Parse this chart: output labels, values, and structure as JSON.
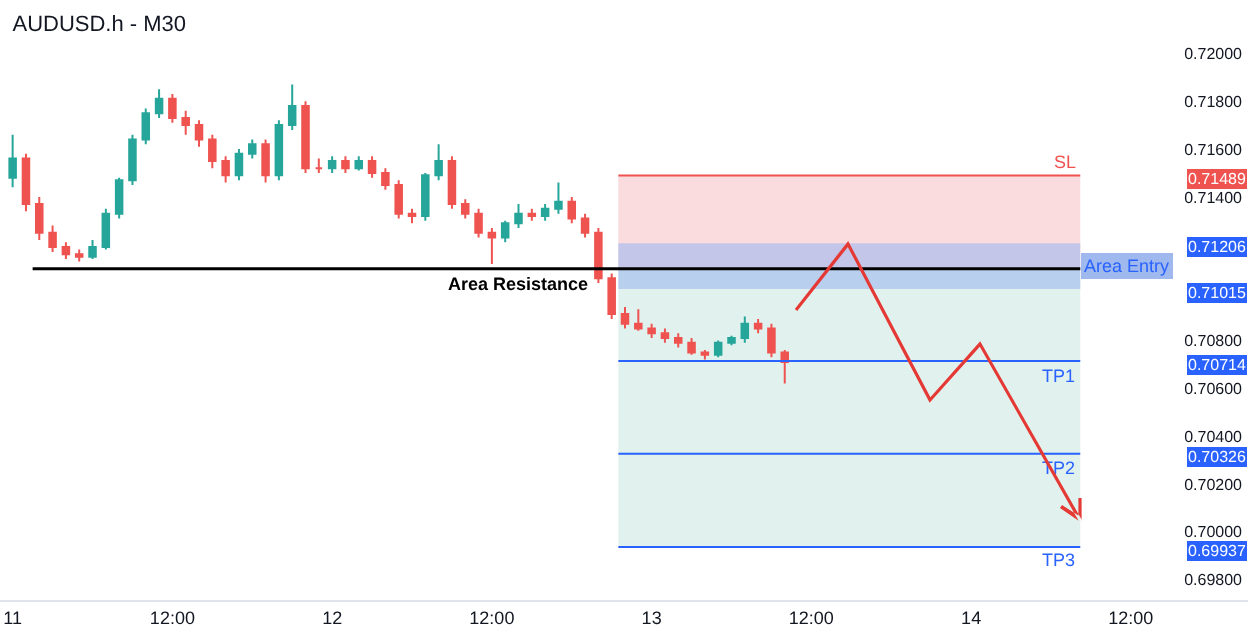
{
  "chart_data": {
    "type": "candlestick",
    "title": "AUDUSD.h - M30",
    "categories": [
      "11",
      null,
      null,
      null,
      null,
      null,
      null,
      null,
      null,
      null,
      null,
      null,
      "12:00",
      null,
      null,
      null,
      null,
      null,
      null,
      null,
      null,
      null,
      null,
      null,
      "12",
      null,
      null,
      null,
      null,
      null,
      null,
      null,
      null,
      null,
      null,
      null,
      "12:00",
      null,
      null,
      null,
      null,
      null,
      null,
      null,
      null,
      null,
      null,
      null,
      "13",
      null,
      null,
      null,
      null,
      null,
      null,
      null,
      null,
      null,
      null,
      null,
      "12:00",
      null,
      null,
      null,
      null,
      null,
      null,
      null,
      null,
      null,
      null,
      null,
      "14",
      null,
      null,
      null,
      null,
      null,
      null,
      null,
      null,
      null,
      null,
      null,
      "12:00",
      null,
      null,
      null,
      null,
      null,
      null,
      null,
      null,
      null
    ],
    "ohlc": [
      [
        0.7148,
        0.7166,
        0.7144,
        0.7156
      ],
      [
        0.7156,
        0.7158,
        0.7134,
        0.7137
      ],
      [
        0.7137,
        0.714,
        0.7122,
        0.7125
      ],
      [
        0.7125,
        0.7128,
        0.7117,
        0.7119
      ],
      [
        0.7119,
        0.7121,
        0.7114,
        0.7116
      ],
      [
        0.7116,
        0.7118,
        0.7113,
        0.7115
      ],
      [
        0.7115,
        0.7122,
        0.7114,
        0.7119
      ],
      [
        0.7119,
        0.7135,
        0.7118,
        0.7133
      ],
      [
        0.7133,
        0.7148,
        0.7131,
        0.7147
      ],
      [
        0.7147,
        0.7166,
        0.7145,
        0.7164
      ],
      [
        0.7164,
        0.7177,
        0.7162,
        0.7175
      ],
      [
        0.7175,
        0.7185,
        0.7173,
        0.7181
      ],
      [
        0.7181,
        0.7183,
        0.7171,
        0.7173
      ],
      [
        0.7173,
        0.7176,
        0.7166,
        0.717
      ],
      [
        0.717,
        0.7172,
        0.7161,
        0.7164
      ],
      [
        0.7164,
        0.7166,
        0.7152,
        0.7155
      ],
      [
        0.7155,
        0.7157,
        0.7146,
        0.7149
      ],
      [
        0.7149,
        0.716,
        0.7147,
        0.7158
      ],
      [
        0.7158,
        0.7164,
        0.7156,
        0.7162
      ],
      [
        0.7162,
        0.7164,
        0.7146,
        0.7149
      ],
      [
        0.7149,
        0.7172,
        0.7147,
        0.717
      ],
      [
        0.717,
        0.7187,
        0.7168,
        0.7178
      ],
      [
        0.7178,
        0.718,
        0.715,
        0.7152
      ],
      [
        0.7152,
        0.7156,
        0.715,
        0.7152
      ],
      [
        0.7152,
        0.7157,
        0.715,
        0.7155
      ],
      [
        0.7155,
        0.7157,
        0.715,
        0.7152
      ],
      [
        0.7152,
        0.7157,
        0.7151,
        0.7155
      ],
      [
        0.7155,
        0.7157,
        0.7148,
        0.715
      ],
      [
        0.715,
        0.7152,
        0.7143,
        0.7145
      ],
      [
        0.7145,
        0.7147,
        0.7131,
        0.7133
      ],
      [
        0.7133,
        0.7135,
        0.7129,
        0.7132
      ],
      [
        0.7132,
        0.715,
        0.713,
        0.7149
      ],
      [
        0.7149,
        0.7162,
        0.7147,
        0.7155
      ],
      [
        0.7155,
        0.7157,
        0.7135,
        0.7137
      ],
      [
        0.7137,
        0.7139,
        0.7131,
        0.7133
      ],
      [
        0.7133,
        0.7135,
        0.7123,
        0.7125
      ],
      [
        0.7125,
        0.7127,
        0.7112,
        0.7123
      ],
      [
        0.7123,
        0.713,
        0.7121,
        0.7129
      ],
      [
        0.7129,
        0.7137,
        0.7127,
        0.7133
      ],
      [
        0.7133,
        0.7135,
        0.713,
        0.7132
      ],
      [
        0.7132,
        0.7137,
        0.713,
        0.7135
      ],
      [
        0.7135,
        0.7146,
        0.7133,
        0.7138
      ],
      [
        0.7138,
        0.714,
        0.7129,
        0.7131
      ],
      [
        0.7131,
        0.7133,
        0.7123,
        0.7125
      ],
      [
        0.7125,
        0.7127,
        0.7104,
        0.7106
      ],
      [
        0.7106,
        0.7108,
        0.7089,
        0.7091
      ],
      [
        0.7091,
        0.7094,
        0.7085,
        0.7087
      ],
      [
        0.7087,
        0.7093,
        0.7084,
        0.7085
      ],
      [
        0.7085,
        0.7087,
        0.7081,
        0.7083
      ],
      [
        0.7083,
        0.7085,
        0.7079,
        0.7081
      ],
      [
        0.7081,
        0.7083,
        0.7077,
        0.7079
      ],
      [
        0.7079,
        0.7081,
        0.7074,
        0.7075
      ],
      [
        0.7075,
        0.7076,
        0.7072,
        0.7074
      ],
      [
        0.7074,
        0.708,
        0.7073,
        0.7079
      ],
      [
        0.7079,
        0.7082,
        0.7078,
        0.7081
      ],
      [
        0.7081,
        0.709,
        0.7079,
        0.7087
      ],
      [
        0.7087,
        0.7089,
        0.7083,
        0.7085
      ],
      [
        0.7085,
        0.7087,
        0.7073,
        0.7075
      ],
      [
        0.7075,
        0.7076,
        0.7062,
        0.7071
      ],
      null,
      null,
      null,
      null,
      null,
      null,
      null,
      null,
      null,
      null,
      null,
      null,
      null,
      null,
      null,
      null,
      null,
      null,
      null,
      null,
      null,
      null,
      null,
      null,
      null,
      null,
      null,
      null,
      null,
      null,
      null,
      null,
      null,
      null,
      null
    ],
    "ylim": [
      0.69715,
      0.72223
    ],
    "yticks": [
      {
        "value": 0.698,
        "label": "0.69800"
      },
      {
        "value": 0.7,
        "label": "0.70000"
      },
      {
        "value": 0.702,
        "label": "0.70200"
      },
      {
        "value": 0.704,
        "label": "0.70400"
      },
      {
        "value": 0.706,
        "label": "0.70600"
      },
      {
        "value": 0.708,
        "label": "0.70800"
      },
      {
        "value": 0.714,
        "label": "0.71400"
      },
      {
        "value": 0.716,
        "label": "0.71600"
      },
      {
        "value": 0.718,
        "label": "0.71800"
      },
      {
        "value": 0.72,
        "label": "0.72000"
      }
    ],
    "annotations": [
      {
        "text": "0.71489",
        "y": 0.71489
      },
      {
        "text": "0.71206",
        "y": 0.71206
      },
      {
        "text": "0.71015",
        "y": 0.71015
      },
      {
        "text": "0.70714",
        "y": 0.70714
      },
      {
        "text": "0.70326",
        "y": 0.70326
      },
      {
        "text": "0.69937",
        "y": 0.69937
      }
    ],
    "ref_lines": [
      {
        "axis": "y",
        "value": 0.711,
        "label": "Area Resistance",
        "color": "#000000"
      },
      {
        "axis": "y",
        "value": 0.71489,
        "label": "SL",
        "color": "#ef5350"
      },
      {
        "axis": "y",
        "value": 0.70714,
        "label": "TP1",
        "color": "#2962ff"
      },
      {
        "axis": "y",
        "value": 0.70326,
        "label": "TP2",
        "color": "#2962ff"
      },
      {
        "axis": "y",
        "value": 0.69937,
        "label": "TP3",
        "color": "#2962ff"
      }
    ],
    "bands": [
      {
        "axis": "y",
        "from": 0.711,
        "to": 0.71489,
        "color": "#f7c5c8"
      },
      {
        "axis": "y",
        "from": 0.69937,
        "to": 0.711,
        "color": "#cdeae3"
      },
      {
        "axis": "y",
        "from": 0.71015,
        "to": 0.71206,
        "label": "Area Entry",
        "color": "#9fb8ee"
      }
    ],
    "grid": false,
    "legend": false
  }
}
